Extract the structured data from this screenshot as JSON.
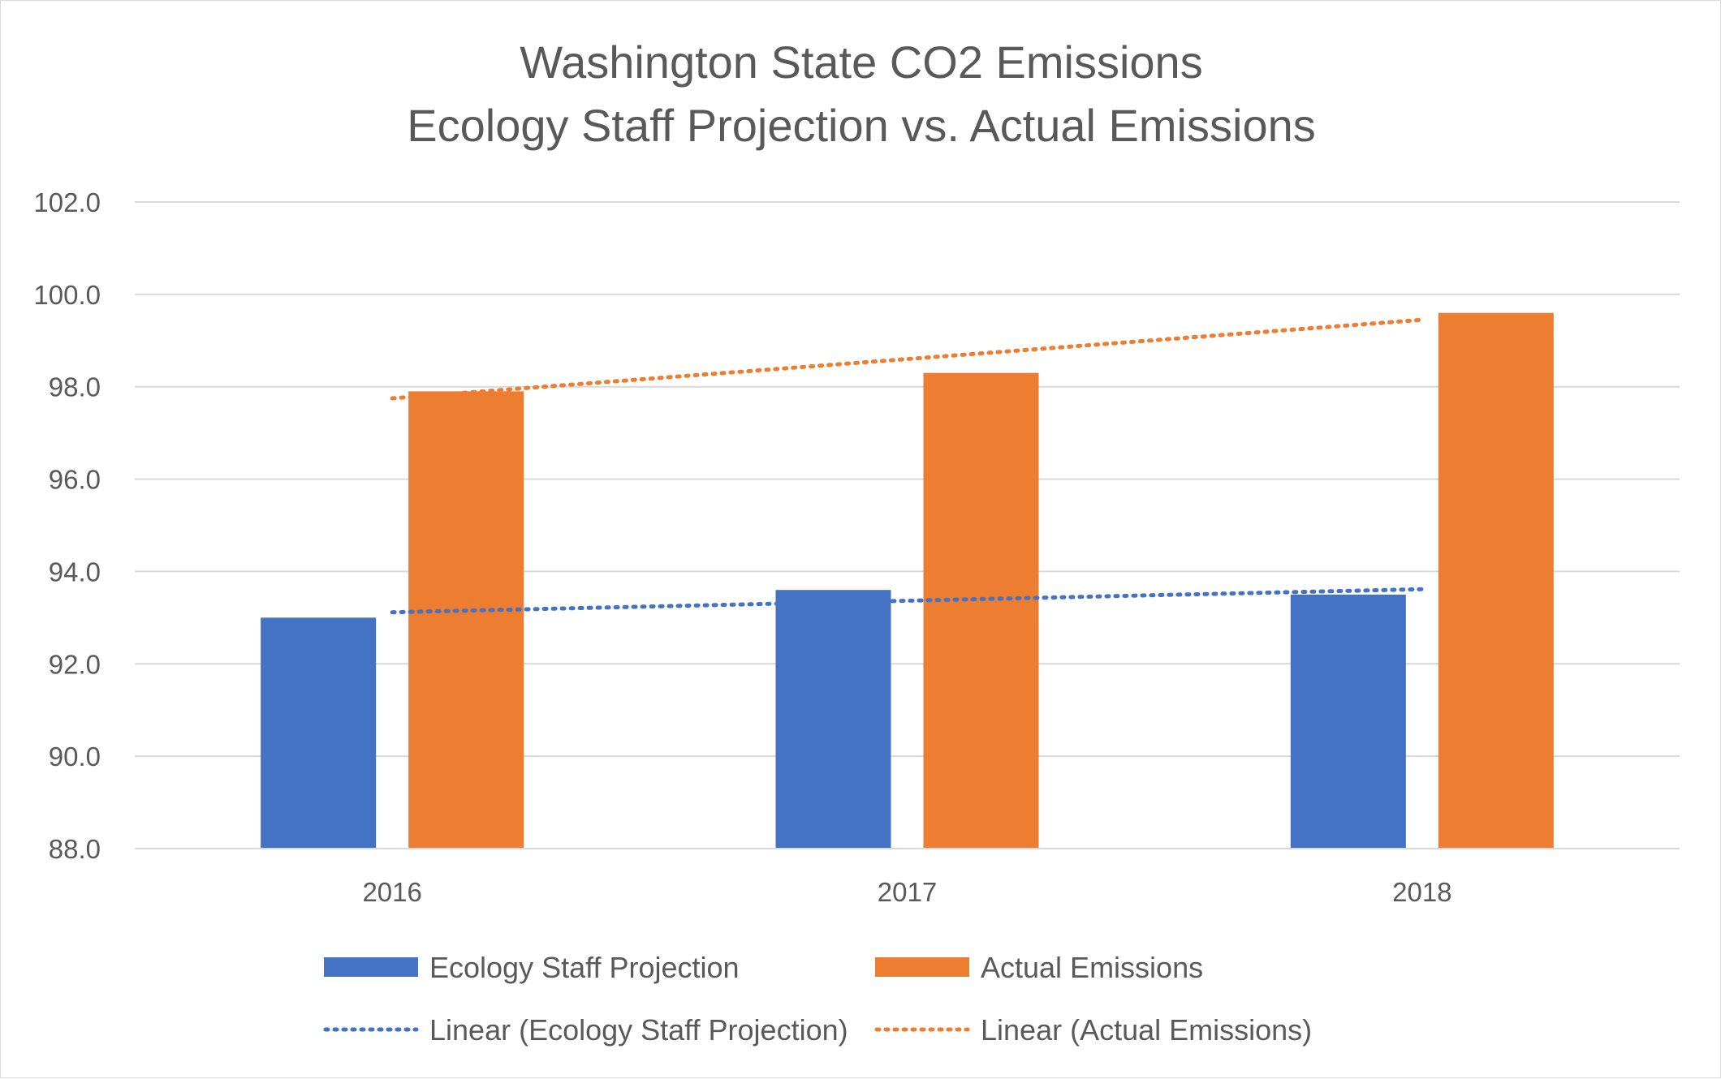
{
  "chart_data": {
    "type": "bar",
    "title": "Washington State CO2 Emissions",
    "subtitle": "Ecology Staff Projection vs. Actual Emissions",
    "xlabel": "",
    "ylabel": "",
    "categories": [
      "2016",
      "2017",
      "2018"
    ],
    "ylim": [
      88.0,
      102.0
    ],
    "yticks": [
      "88.0",
      "90.0",
      "92.0",
      "94.0",
      "96.0",
      "98.0",
      "100.0",
      "102.0"
    ],
    "grid": true,
    "legend_position": "bottom",
    "series": [
      {
        "name": "Ecology Staff Projection",
        "values": [
          93.0,
          93.6,
          93.5
        ],
        "color": "#4472C4"
      },
      {
        "name": "Actual Emissions",
        "values": [
          97.9,
          98.3,
          99.6
        ],
        "color": "#ED7D31"
      }
    ],
    "trendlines": [
      {
        "name": "Linear (Ecology Staff Projection)",
        "type": "linear",
        "series": "Ecology Staff Projection",
        "color": "#4472C4",
        "style": "dotted"
      },
      {
        "name": "Linear (Actual Emissions)",
        "type": "linear",
        "series": "Actual Emissions",
        "color": "#ED7D31",
        "style": "dotted"
      }
    ]
  }
}
